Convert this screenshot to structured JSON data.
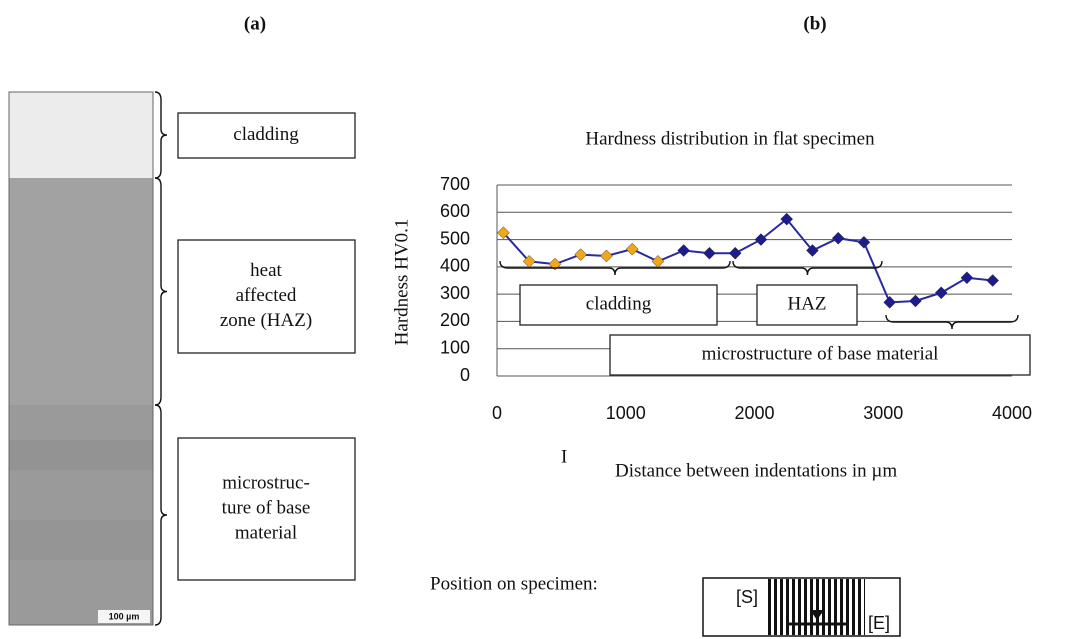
{
  "panel_labels": [
    "(a)",
    "(b)"
  ],
  "micrograph": {
    "scale_bar": "100 µm",
    "zones": [
      {
        "lines": [
          "cladding"
        ]
      },
      {
        "lines": [
          "heat",
          "affected",
          "zone (HAZ)"
        ]
      },
      {
        "lines": [
          "microstruc-",
          "ture of base",
          "material"
        ]
      }
    ]
  },
  "chart_data": {
    "type": "line",
    "title": "Hardness distribution in flat specimen",
    "x_label": "Distance between indentations in µm",
    "y_label": "Hardness HV0.1",
    "x": [
      50,
      250,
      450,
      650,
      850,
      1050,
      1250,
      1450,
      1650,
      1850,
      2050,
      2250,
      2450,
      2650,
      2850,
      3050,
      3250,
      3450,
      3650,
      3850
    ],
    "series": [
      {
        "color": "#2a2aa0",
        "values": [
          525,
          420,
          410,
          445,
          440,
          465,
          420,
          460,
          450,
          450,
          500,
          575,
          460,
          505,
          490,
          270,
          275,
          305,
          360,
          350
        ],
        "marker_colors": [
          "#f0a818",
          "#f0a818",
          "#f0a818",
          "#f0a818",
          "#f0a818",
          "#f0a818",
          "#f0a818",
          "#1c1c8c",
          "#1c1c8c",
          "#1c1c8c",
          "#1c1c8c",
          "#1c1c8c",
          "#1c1c8c",
          "#1c1c8c",
          "#1c1c8c",
          "#1c1c8c",
          "#1c1c8c",
          "#1c1c8c",
          "#1c1c8c",
          "#1c1c8c"
        ]
      }
    ],
    "xlim": [
      0,
      4000
    ],
    "xticks": [
      0,
      1000,
      2000,
      3000,
      4000
    ],
    "ylim": [
      0,
      700
    ],
    "yticks": [
      0,
      100,
      200,
      300,
      400,
      500,
      600,
      700
    ],
    "grid": true,
    "annotations": [
      "cladding",
      "HAZ",
      "microstructure of base material",
      "I"
    ]
  },
  "position": {
    "label": "Position on specimen:",
    "start": "[S]",
    "end": "[E]"
  }
}
